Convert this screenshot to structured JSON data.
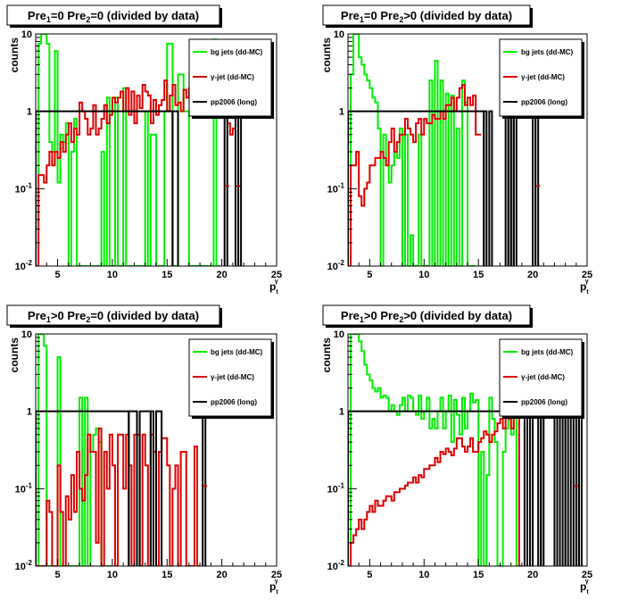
{
  "colors": {
    "bg_jets": "#00ee00",
    "gamma_jet": "#dd0000",
    "pp2006": "#000000"
  },
  "legend": {
    "bg": "bg jets (dd-MC)",
    "gj_prefix": "γ",
    "gj_suffix": "-jet (dd-MC)",
    "pp": "pp2006 (long)"
  },
  "axis": {
    "x_main": "p",
    "x_sub": "t",
    "x_sup": "γ",
    "y": "counts",
    "x_ticks": [
      "5",
      "10",
      "15",
      "20",
      "25"
    ],
    "y_ticks": [
      {
        "base": "10",
        "exp": "-2"
      },
      {
        "base": "10",
        "exp": "-1"
      },
      {
        "base": "1",
        "exp": ""
      },
      {
        "base": "10",
        "exp": ""
      }
    ]
  },
  "chart_data": [
    {
      "type": "line",
      "title": {
        "p1": "Pre",
        "p1_sub": "1",
        "p2": "=0  Pre",
        "p2_sub": "2",
        "p3": "=0 (divided by data)"
      },
      "xlim": [
        3,
        25
      ],
      "ylim": [
        0.01,
        10
      ],
      "yscale": "log",
      "bin_width": 0.25,
      "series": [
        {
          "name": "bg jets (dd-MC)",
          "key": "bg",
          "values": [
            0.01,
            7.5,
            10,
            10,
            7.5,
            0.4,
            0.3,
            6,
            0.12,
            0.5,
            0.4,
            0.7,
            0.01,
            0.3,
            0.8,
            0.01,
            0.01,
            0.01,
            0.01,
            0.01,
            0.01,
            0.01,
            0.01,
            0.01,
            0.3,
            0.01,
            1.5,
            0.01,
            0.01,
            1.5,
            0.01,
            0.01,
            2,
            0.01,
            0.01,
            0.01,
            0.01,
            0.01,
            0.01,
            0.01,
            1,
            0.01,
            0.5,
            0.5,
            0.01,
            0.01,
            0.01,
            1,
            7.5,
            7.5,
            0.01,
            0.01,
            3,
            3,
            1,
            1,
            0.01,
            0.01,
            0.01,
            0.01,
            0.01,
            0.01,
            0.01,
            0.01,
            0.01,
            8.5,
            0.01
          ]
        },
        {
          "name": "γ-jet (dd-MC)",
          "key": "gj",
          "values": [
            0.01,
            0.15,
            0.15,
            0.12,
            0.2,
            0.3,
            0.2,
            0.3,
            0.25,
            0.4,
            0.3,
            0.5,
            0.7,
            0.4,
            0.6,
            0.5,
            1.3,
            1,
            0.8,
            0.5,
            0.6,
            1.2,
            0.5,
            0.6,
            0.8,
            1.2,
            0.7,
            0.9,
            1.5,
            1.3,
            1.5,
            1.8,
            1,
            2,
            0.9,
            1.8,
            0.7,
            1.6,
            1.1,
            2.2,
            1.8,
            1.6,
            0.7,
            1.4,
            0.9,
            1.2,
            1.4,
            2.5,
            1,
            1.6,
            2.2,
            1.2,
            1.3,
            1,
            1.9,
            1.5,
            2,
            2.2,
            3,
            1,
            1.5,
            1.5,
            4,
            2.5,
            1,
            1.5,
            1.1,
            1,
            1.3,
            1,
            0.7,
            0.5,
            0.6
          ]
        },
        {
          "name": "pp2006 (long)",
          "key": "pp",
          "bins": [
            [
              3,
              15.5,
              1
            ],
            [
              15.5,
              16,
              1
            ],
            [
              20.25,
              20.5,
              1
            ],
            [
              21.25,
              21.5,
              1
            ],
            [
              21.5,
              21.75,
              1
            ]
          ],
          "markers": [
            20.5,
            21.5
          ]
        }
      ]
    },
    {
      "type": "line",
      "title": {
        "p1": "Pre",
        "p1_sub": "1",
        "p2": "=0  Pre",
        "p2_sub": "2",
        "p3": ">0 (divided by data)"
      },
      "xlim": [
        3,
        25
      ],
      "ylim": [
        0.01,
        10
      ],
      "yscale": "log",
      "bin_width": 0.25,
      "series": [
        {
          "name": "bg jets (dd-MC)",
          "key": "bg",
          "values": [
            0.01,
            3,
            10,
            10,
            5,
            4,
            3,
            2.5,
            2,
            1.5,
            1.3,
            0.6,
            0.01,
            0.5,
            0.2,
            0.12,
            0.2,
            0.3,
            0.25,
            0.6,
            0.01,
            0.5,
            0.01,
            0.025,
            0.01,
            0.01,
            0.5,
            0.01,
            0.01,
            0.01,
            2.5,
            0.01,
            4.5,
            0.01,
            2.5,
            0.01,
            1.7,
            0.01,
            1.6,
            0.01,
            0.6,
            0.01,
            2.5,
            1.3,
            0.01,
            0.01,
            0.01
          ]
        },
        {
          "name": "γ-jet (dd-MC)",
          "key": "gj",
          "values": [
            0.01,
            0.2,
            0.2,
            0.3,
            0.08,
            0.06,
            0.1,
            0.12,
            0.2,
            0.2,
            0.25,
            0.25,
            0.3,
            0.25,
            0.2,
            0.4,
            0.6,
            0.3,
            0.4,
            0.5,
            0.5,
            0.8,
            0.6,
            0.5,
            0.4,
            0.7,
            0.8,
            0.5,
            0.8,
            0.7,
            0.7,
            0.9,
            0.8,
            0.8,
            1,
            0.8,
            1.2,
            1.2,
            1.5,
            1,
            1.5,
            2,
            2.2,
            1.2,
            1.5,
            1.2,
            1.6,
            0.5,
            0.5
          ]
        },
        {
          "name": "pp2006 (long)",
          "key": "pp",
          "bins": [
            [
              3,
              15.5,
              1
            ],
            [
              15.5,
              15.75,
              1
            ],
            [
              16,
              16.25,
              1
            ],
            [
              17.5,
              17.75,
              1
            ],
            [
              17.75,
              18,
              1
            ],
            [
              18,
              18.25,
              1
            ],
            [
              18.25,
              18.5,
              1
            ],
            [
              20,
              20.25,
              1
            ],
            [
              20.25,
              20.5,
              1
            ]
          ],
          "markers": [
            20.5
          ]
        }
      ]
    },
    {
      "type": "line",
      "title": {
        "p1": "Pre",
        "p1_sub": "1",
        "p2": ">0  Pre",
        "p2_sub": "2",
        "p3": "=0 (divided by data)"
      },
      "xlim": [
        3,
        25
      ],
      "ylim": [
        0.01,
        10
      ],
      "yscale": "log",
      "bin_width": 0.25,
      "series": [
        {
          "name": "bg jets (dd-MC)",
          "key": "bg",
          "values": [
            0.01,
            10,
            10,
            7,
            0.01,
            0.01,
            0.01,
            0.01,
            5,
            0.01,
            0.01,
            0.01,
            0.01,
            0.01,
            0.01,
            0.01,
            1.5,
            0.01,
            1.5,
            0.01,
            0.3,
            0.5,
            0.6,
            0.4,
            0.01,
            0.01,
            0.01,
            0.01
          ]
        },
        {
          "name": "γ-jet (dd-MC)",
          "key": "gj",
          "values": [
            0.01,
            0.01,
            0.01,
            0.01,
            0.07,
            0.05,
            0.01,
            0.01,
            0.2,
            0.05,
            0.01,
            0.08,
            0.04,
            0.15,
            0.05,
            0.3,
            0.1,
            0.07,
            0.15,
            0.5,
            0.3,
            0.3,
            0.02,
            0.6,
            0.01,
            0.3,
            0.1,
            0.5,
            0.2,
            0.01,
            0.5,
            0.5,
            0.1,
            0.5,
            0.2,
            0.01,
            0.5,
            0.5,
            0.01,
            0.5,
            0.2,
            0.01,
            0.5,
            0.3,
            0.01,
            0.3,
            0.45,
            0.45,
            0.2,
            0.01,
            0.1,
            0.2,
            0.01,
            0.3,
            0.3,
            0.01,
            0.01,
            0.01,
            0.35,
            0.01
          ]
        },
        {
          "name": "pp2006 (long)",
          "key": "pp",
          "bins": [
            [
              3,
              11.5,
              1
            ],
            [
              11.5,
              12.25,
              1
            ],
            [
              12.5,
              13.5,
              1
            ],
            [
              13.5,
              13.75,
              1
            ],
            [
              14,
              14.5,
              1
            ],
            [
              18.25,
              18.5,
              1
            ]
          ],
          "markers": [
            18.5
          ]
        }
      ]
    },
    {
      "type": "line",
      "title": {
        "p1": "Pre",
        "p1_sub": "1",
        "p2": ">0  Pre",
        "p2_sub": "2",
        "p3": ">0 (divided by data)"
      },
      "xlim": [
        3,
        25
      ],
      "ylim": [
        0.01,
        10
      ],
      "yscale": "log",
      "bin_width": 0.25,
      "series": [
        {
          "name": "bg jets (dd-MC)",
          "key": "bg",
          "values": [
            0.01,
            10,
            10,
            10,
            8,
            6,
            4,
            3,
            2.5,
            2,
            1.8,
            2,
            1.5,
            1.6,
            1.5,
            1,
            1.2,
            1,
            0.9,
            1.2,
            1.5,
            1,
            1.6,
            1.5,
            1,
            0.9,
            1.6,
            0.8,
            1,
            1.5,
            0.6,
            0.8,
            0.6,
            1,
            1.5,
            0.6,
            1,
            1.6,
            0.4,
            1.4,
            0.9,
            0.5,
            1.5,
            0.6,
            1,
            1.7,
            1.3,
            1.4,
            0.01,
            0.3,
            0.01,
            0.15,
            1.5,
            0.8,
            0.4,
            0.01,
            0.01,
            0.3,
            0.6,
            1.5,
            0.5,
            1,
            0.01
          ]
        },
        {
          "name": "γ-jet (dd-MC)",
          "key": "gj",
          "values": [
            0.01,
            0.02,
            0.025,
            0.03,
            0.04,
            0.03,
            0.04,
            0.05,
            0.06,
            0.05,
            0.07,
            0.06,
            0.06,
            0.07,
            0.08,
            0.08,
            0.07,
            0.09,
            0.09,
            0.1,
            0.1,
            0.11,
            0.12,
            0.12,
            0.14,
            0.12,
            0.15,
            0.14,
            0.18,
            0.18,
            0.2,
            0.2,
            0.25,
            0.22,
            0.3,
            0.28,
            0.33,
            0.3,
            0.27,
            0.33,
            0.45,
            0.45,
            0.35,
            0.3,
            0.35,
            0.45,
            0.3,
            0.3,
            0.4,
            0.45,
            0.55,
            0.5,
            0.4,
            0.5,
            0.55,
            0.7,
            0.8,
            0.6,
            0.9,
            0.8,
            0.6,
            1,
            1,
            0.01
          ]
        },
        {
          "name": "pp2006 (long)",
          "key": "pp",
          "bins": [
            [
              3,
              19.25,
              1
            ],
            [
              19.25,
              19.5,
              1
            ],
            [
              19.75,
              20,
              1
            ],
            [
              20.5,
              20.75,
              1
            ],
            [
              20.75,
              21,
              1
            ],
            [
              22,
              22.25,
              1
            ],
            [
              22.25,
              22.5,
              1
            ],
            [
              22.75,
              23,
              1
            ],
            [
              23,
              23.25,
              1
            ],
            [
              23.5,
              23.75,
              1
            ],
            [
              24,
              24.25,
              1
            ],
            [
              24.25,
              24.5,
              1
            ]
          ],
          "markers": [
            24
          ]
        }
      ]
    }
  ]
}
